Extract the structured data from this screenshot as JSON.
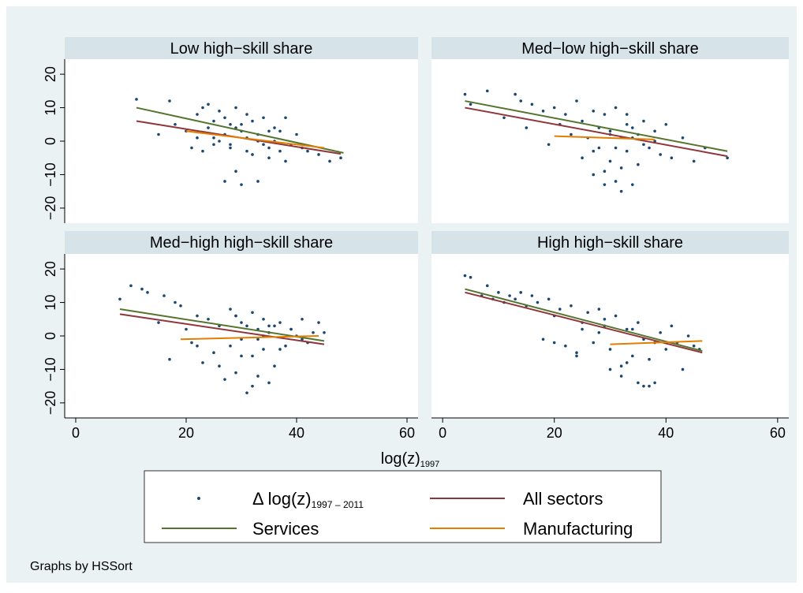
{
  "chart_data": [
    {
      "type": "scatter",
      "title": "Low high−skill share",
      "xlim": [
        -2,
        62
      ],
      "ylim": [
        -24.5,
        24.5
      ],
      "yticks": [
        {
          "value": -20,
          "label": "−20"
        },
        {
          "value": -10,
          "label": "−10"
        },
        0,
        10,
        20
      ],
      "series": [
        {
          "x": [
            11,
            15,
            17,
            18,
            20,
            21,
            22,
            22,
            23,
            23,
            24,
            24,
            25,
            25,
            26,
            26,
            27,
            27,
            28,
            28,
            29,
            29,
            30,
            30,
            31,
            31,
            32,
            32,
            33,
            33,
            34,
            34,
            35,
            35,
            36,
            36,
            37,
            38,
            38,
            40,
            41,
            42,
            44,
            46,
            48,
            27,
            28,
            29,
            31,
            33,
            30,
            25,
            35,
            37,
            39
          ],
          "values": [
            12.5,
            2,
            12,
            5,
            3,
            -2,
            8,
            1,
            10,
            -3,
            11,
            4,
            6,
            -1,
            9,
            0,
            7,
            -12,
            5,
            -2,
            10,
            -9,
            3,
            -13,
            8,
            1,
            -4,
            6,
            -12,
            2,
            -1,
            7,
            3,
            -5,
            0,
            4,
            -3,
            7,
            -6,
            2,
            -2,
            -3,
            -4,
            -6,
            -5,
            2,
            -1,
            4,
            -3,
            0,
            5,
            1,
            -2,
            3,
            -1
          ]
        },
        {
          "x": [
            11,
            48
          ],
          "values": [
            6,
            -3.8
          ]
        },
        {
          "x": [
            11,
            48.5
          ],
          "values": [
            10,
            -3.5
          ]
        },
        {
          "x": [
            20,
            45
          ],
          "values": [
            3,
            -2
          ]
        }
      ]
    },
    {
      "type": "scatter",
      "title": "Med−low high−skill share",
      "xlim": [
        -2,
        62
      ],
      "ylim": [
        -24.5,
        24.5
      ],
      "series": [
        {
          "x": [
            4,
            5,
            8,
            11,
            13,
            14,
            15,
            16,
            18,
            19,
            20,
            21,
            22,
            23,
            24,
            25,
            25,
            26,
            27,
            27,
            28,
            28,
            29,
            29,
            30,
            30,
            31,
            31,
            32,
            32,
            33,
            33,
            34,
            34,
            35,
            35,
            36,
            37,
            38,
            39,
            40,
            41,
            43,
            45,
            47,
            51,
            30,
            32,
            33,
            27,
            36,
            38,
            29,
            34,
            31
          ],
          "values": [
            14,
            11,
            15,
            7,
            14,
            12,
            4,
            11,
            9,
            -1,
            10,
            5,
            8,
            2,
            12,
            -5,
            6,
            1,
            -10,
            9,
            -2,
            4,
            8,
            -13,
            -6,
            3,
            10,
            -12,
            1,
            -15,
            5,
            -3,
            -13,
            4,
            2,
            -7,
            6,
            -2,
            3,
            -4,
            5,
            -5,
            1,
            -6,
            -2,
            -5,
            2,
            -8,
            8,
            -3,
            -1,
            0,
            -9,
            1,
            -2
          ]
        },
        {
          "x": [
            4,
            51
          ],
          "values": [
            10,
            -4.5
          ]
        },
        {
          "x": [
            4,
            51
          ],
          "values": [
            12,
            -3
          ]
        },
        {
          "x": [
            20,
            38
          ],
          "values": [
            1.5,
            0.5
          ]
        }
      ]
    },
    {
      "type": "scatter",
      "title": "Med−high high−skill share",
      "xlim": [
        -2,
        62
      ],
      "ylim": [
        -24.5,
        24.5
      ],
      "xticks": [
        0,
        20,
        40,
        60
      ],
      "yticks": [
        {
          "value": -20,
          "label": "−20"
        },
        {
          "value": -10,
          "label": "−10"
        },
        0,
        10,
        20
      ],
      "series": [
        {
          "x": [
            8,
            10,
            12,
            13,
            15,
            16,
            17,
            18,
            19,
            20,
            21,
            22,
            23,
            24,
            25,
            26,
            27,
            28,
            28,
            29,
            29,
            30,
            30,
            31,
            31,
            32,
            32,
            33,
            33,
            34,
            34,
            35,
            35,
            36,
            36,
            37,
            38,
            39,
            40,
            41,
            42,
            43,
            44,
            45,
            22,
            26,
            30,
            32,
            34,
            29,
            33,
            35,
            37,
            39,
            41
          ],
          "values": [
            11,
            15,
            14,
            13,
            4,
            12,
            -7,
            10,
            9,
            2,
            -2,
            6,
            -8,
            5,
            -5,
            3,
            -13,
            8,
            -3,
            6,
            -11,
            -1,
            4,
            3,
            -17,
            -6,
            7,
            -12,
            2,
            5,
            -4,
            -14,
            1,
            3,
            -9,
            4,
            -3,
            2,
            0,
            5,
            -2,
            1,
            4,
            1,
            -3,
            -9,
            -6,
            -15,
            0,
            6,
            -1,
            3,
            -4,
            2,
            -1
          ]
        },
        {
          "x": [
            8,
            45
          ],
          "values": [
            6.5,
            -2.5
          ]
        },
        {
          "x": [
            8,
            45
          ],
          "values": [
            8,
            -1.5
          ]
        },
        {
          "x": [
            19,
            44
          ],
          "values": [
            -1,
            0
          ]
        }
      ]
    },
    {
      "type": "scatter",
      "title": "High high−skill share",
      "xlim": [
        -2,
        62
      ],
      "ylim": [
        -24.5,
        24.5
      ],
      "xticks": [
        0,
        20,
        40,
        60
      ],
      "series": [
        {
          "x": [
            4,
            5,
            7,
            8,
            9,
            10,
            11,
            12,
            13,
            14,
            15,
            16,
            17,
            18,
            19,
            20,
            21,
            22,
            23,
            24,
            25,
            26,
            27,
            28,
            29,
            30,
            31,
            32,
            33,
            34,
            35,
            36,
            37,
            38,
            39,
            40,
            41,
            42,
            43,
            44,
            45,
            46,
            20,
            24,
            28,
            30,
            32,
            34,
            35,
            36,
            37,
            38,
            25,
            29,
            33
          ],
          "values": [
            18,
            17.5,
            12,
            15,
            11,
            13,
            10,
            12,
            11,
            13,
            9,
            12,
            10,
            -1,
            11,
            6,
            8,
            -3,
            9,
            -5,
            4,
            7,
            -2,
            8,
            3,
            -10,
            6,
            -12,
            2,
            -6,
            4,
            -15,
            -7,
            -14,
            1,
            -4,
            3,
            -2,
            -10,
            0,
            -3,
            -4,
            -2,
            -6,
            1,
            -4,
            -9,
            2,
            -14,
            -1,
            -15,
            -2,
            2,
            5,
            -8
          ]
        },
        {
          "x": [
            4,
            46.5
          ],
          "values": [
            13,
            -5
          ]
        },
        {
          "x": [
            4,
            46.5
          ],
          "values": [
            14,
            -4.5
          ]
        },
        {
          "x": [
            30,
            46.5
          ],
          "values": [
            -2.5,
            -1.5
          ]
        }
      ]
    }
  ],
  "x_title": {
    "text": "log(z)",
    "subscript": "1997"
  },
  "legend": {
    "entries": [
      {
        "name": "Δ log(z)",
        "subscript": "1997 – 2011",
        "color": "#1a476f"
      },
      {
        "name": "All sectors",
        "color": "#90353b"
      },
      {
        "name": "Services",
        "color": "#55752f"
      },
      {
        "name": "Manufacturing",
        "color": "#e37e00"
      }
    ]
  },
  "note": "Graphs by HSSort"
}
